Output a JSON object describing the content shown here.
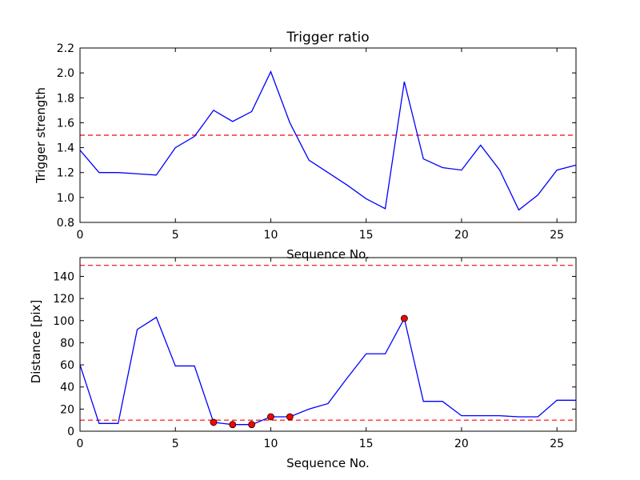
{
  "chart_data": [
    {
      "type": "line",
      "title": "Trigger ratio",
      "xlabel": "Sequence No.",
      "ylabel": "Trigger strength",
      "xlim": [
        0,
        26
      ],
      "ylim": [
        0.8,
        2.2
      ],
      "xticks": [
        0,
        5,
        10,
        15,
        20,
        25
      ],
      "yticks": [
        0.8,
        1.0,
        1.2,
        1.4,
        1.6,
        1.8,
        2.0,
        2.2
      ],
      "ytick_labels": [
        "0.8",
        "1.0",
        "1.2",
        "1.4",
        "1.6",
        "1.8",
        "2.0",
        "2.2"
      ],
      "x": [
        0,
        1,
        2,
        3,
        4,
        5,
        6,
        7,
        8,
        9,
        10,
        11,
        12,
        13,
        14,
        15,
        16,
        17,
        18,
        19,
        20,
        21,
        22,
        23,
        24,
        25,
        26
      ],
      "series": [
        {
          "color": "#0000ff",
          "values": [
            1.38,
            1.2,
            1.2,
            1.19,
            1.18,
            1.4,
            1.49,
            1.7,
            1.61,
            1.69,
            2.01,
            1.6,
            1.3,
            1.2,
            1.1,
            0.99,
            0.91,
            1.93,
            1.31,
            1.24,
            1.22,
            1.42,
            1.22,
            0.9,
            1.02,
            1.22,
            1.26
          ]
        }
      ],
      "thresholds": [
        {
          "y": 1.5,
          "color": "#ff0000",
          "style": "dashed"
        }
      ],
      "grid": false
    },
    {
      "type": "line",
      "title": "",
      "xlabel": "Sequence No.",
      "ylabel": "Distance [pix]",
      "xlim": [
        0,
        26
      ],
      "ylim": [
        0,
        157
      ],
      "xticks": [
        0,
        5,
        10,
        15,
        20,
        25
      ],
      "yticks": [
        0,
        20,
        40,
        60,
        80,
        100,
        120,
        140
      ],
      "ytick_labels": [
        "0",
        "20",
        "40",
        "60",
        "80",
        "100",
        "120",
        "140"
      ],
      "x": [
        0,
        1,
        2,
        3,
        4,
        5,
        6,
        7,
        8,
        9,
        10,
        11,
        12,
        13,
        14,
        15,
        16,
        17,
        18,
        19,
        20,
        21,
        22,
        23,
        24,
        25,
        26
      ],
      "series": [
        {
          "color": "#0000ff",
          "values": [
            60,
            7,
            7,
            92,
            103,
            59,
            59,
            8,
            6,
            6,
            13,
            13,
            20,
            25,
            48,
            70,
            70,
            102,
            27,
            27,
            14,
            14,
            14,
            13,
            13,
            28,
            28
          ]
        }
      ],
      "markers": {
        "color": "#ff0000",
        "points": [
          {
            "x": 7,
            "y": 8
          },
          {
            "x": 8,
            "y": 6
          },
          {
            "x": 9,
            "y": 6
          },
          {
            "x": 10,
            "y": 13
          },
          {
            "x": 11,
            "y": 13
          },
          {
            "x": 17,
            "y": 102
          }
        ]
      },
      "thresholds": [
        {
          "y": 150,
          "color": "#ff0000",
          "style": "dashed"
        },
        {
          "y": 10,
          "color": "#ff0000",
          "style": "dashed"
        }
      ],
      "grid": false
    }
  ]
}
